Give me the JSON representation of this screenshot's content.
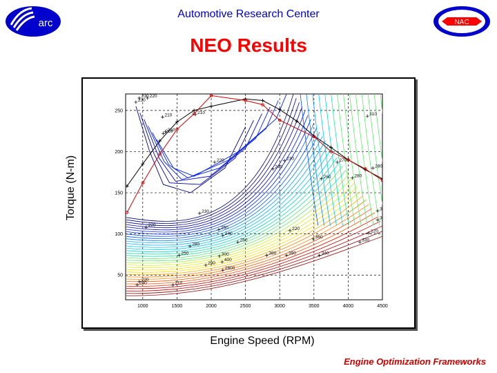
{
  "header": {
    "center_title": "Automotive Research Center",
    "left_logo_text": "arc",
    "right_logo_text": "NAC"
  },
  "slide": {
    "title": "NEO Results",
    "footer": "Engine Optimization Frameworks"
  },
  "colors": {
    "header_blue": "#0000cc",
    "title_red": "#ff0000",
    "footer_red": "#cc0000",
    "logo_blue": "#0000cc",
    "optimum_line": "#cc0000"
  },
  "chart_data": {
    "type": "contour",
    "xlabel": "Engine Speed (RPM)",
    "ylabel": "Torque (N-m)",
    "xlim": [
      750,
      4500
    ],
    "ylim": [
      20,
      270
    ],
    "x_ticks": [
      1000,
      1500,
      2000,
      2500,
      3000,
      3500,
      4000,
      4500
    ],
    "y_ticks": [
      50,
      100,
      150,
      200,
      250
    ],
    "grid": true,
    "contour_labels": [
      {
        "x": 950,
        "y": 265,
        "text": "230"
      },
      {
        "x": 1070,
        "y": 265,
        "text": "220"
      },
      {
        "x": 900,
        "y": 260,
        "text": "230"
      },
      {
        "x": 1290,
        "y": 242,
        "text": "210"
      },
      {
        "x": 1770,
        "y": 245,
        "text": "210"
      },
      {
        "x": 1300,
        "y": 222,
        "text": "210"
      },
      {
        "x": 1330,
        "y": 224,
        "text": "210"
      },
      {
        "x": 2050,
        "y": 187,
        "text": "220"
      },
      {
        "x": 3070,
        "y": 189,
        "text": "230"
      },
      {
        "x": 2900,
        "y": 179,
        "text": "240"
      },
      {
        "x": 3610,
        "y": 167,
        "text": "260"
      },
      {
        "x": 3840,
        "y": 187,
        "text": "270"
      },
      {
        "x": 4060,
        "y": 168,
        "text": "280"
      },
      {
        "x": 4360,
        "y": 180,
        "text": "280"
      },
      {
        "x": 4280,
        "y": 243,
        "text": "310"
      },
      {
        "x": 4430,
        "y": 128,
        "text": "310"
      },
      {
        "x": 4430,
        "y": 117,
        "text": "330"
      },
      {
        "x": 1050,
        "y": 108,
        "text": "220"
      },
      {
        "x": 1830,
        "y": 125,
        "text": "230"
      },
      {
        "x": 2110,
        "y": 105,
        "text": "250"
      },
      {
        "x": 2170,
        "y": 98,
        "text": "240"
      },
      {
        "x": 3150,
        "y": 104,
        "text": "220"
      },
      {
        "x": 3490,
        "y": 94,
        "text": "360"
      },
      {
        "x": 2390,
        "y": 90,
        "text": "250"
      },
      {
        "x": 1690,
        "y": 85,
        "text": "280"
      },
      {
        "x": 1530,
        "y": 74,
        "text": "250"
      },
      {
        "x": 1920,
        "y": 62,
        "text": "290"
      },
      {
        "x": 2120,
        "y": 73,
        "text": "300"
      },
      {
        "x": 2160,
        "y": 66,
        "text": "400"
      },
      {
        "x": 2170,
        "y": 56,
        "text": "2800"
      },
      {
        "x": 2810,
        "y": 74,
        "text": "380"
      },
      {
        "x": 3100,
        "y": 74,
        "text": "390"
      },
      {
        "x": 3580,
        "y": 74,
        "text": "340"
      },
      {
        "x": 4170,
        "y": 90,
        "text": "330"
      },
      {
        "x": 4300,
        "y": 101,
        "text": "120"
      },
      {
        "x": 950,
        "y": 42,
        "text": "220"
      },
      {
        "x": 920,
        "y": 38,
        "text": "240"
      },
      {
        "x": 1440,
        "y": 38,
        "text": "210"
      }
    ],
    "optimum_curve": {
      "name": "",
      "points": [
        [
          770,
          126
        ],
        [
          1000,
          162
        ],
        [
          1250,
          197
        ],
        [
          1500,
          227
        ],
        [
          1750,
          246
        ],
        [
          2000,
          268
        ],
        [
          2500,
          262
        ],
        [
          2750,
          257
        ],
        [
          3000,
          238
        ],
        [
          3500,
          218
        ],
        [
          3750,
          200
        ],
        [
          4000,
          190
        ],
        [
          4250,
          179
        ],
        [
          4500,
          165
        ]
      ]
    },
    "wot_curve": {
      "name": "",
      "points": [
        [
          770,
          158
        ],
        [
          1000,
          185
        ],
        [
          1250,
          213
        ],
        [
          1500,
          236
        ],
        [
          1750,
          250
        ],
        [
          2000,
          255
        ],
        [
          2500,
          264
        ],
        [
          2750,
          262
        ],
        [
          3000,
          251
        ],
        [
          3250,
          237
        ],
        [
          3500,
          219
        ],
        [
          3750,
          205
        ],
        [
          4000,
          190
        ],
        [
          4250,
          178
        ],
        [
          4500,
          167
        ]
      ]
    }
  }
}
